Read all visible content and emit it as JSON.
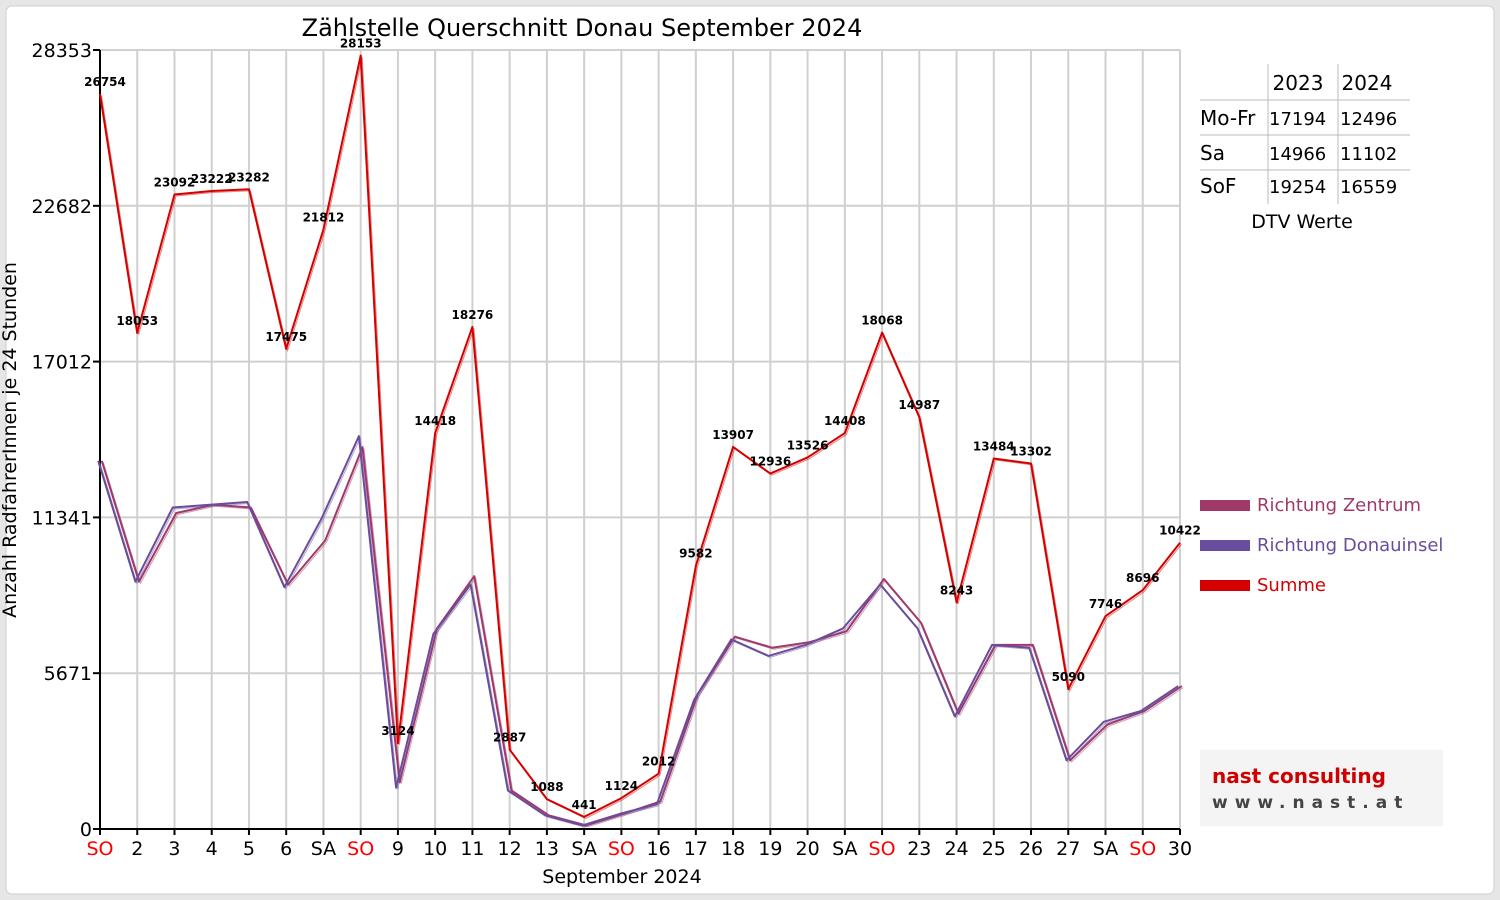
{
  "chart_data": {
    "type": "line",
    "title": "Zählstelle Querschnitt Donau September 2024",
    "xlabel": "September 2024",
    "ylabel": "Anzahl RadfahrerInnen je 24 Stunden",
    "ylim": [
      0,
      28353
    ],
    "yticks": [
      0,
      5671,
      11341,
      17012,
      22682,
      28353
    ],
    "grid": true,
    "categories": [
      "SO",
      "2",
      "3",
      "4",
      "5",
      "6",
      "SA",
      "SO",
      "9",
      "10",
      "11",
      "12",
      "13",
      "SA",
      "SO",
      "16",
      "17",
      "18",
      "19",
      "20",
      "SA",
      "SO",
      "23",
      "24",
      "25",
      "26",
      "27",
      "SA",
      "SO",
      "30"
    ],
    "highlight_categories": [
      "SO"
    ],
    "series": [
      {
        "name": "Richtung Zentrum",
        "color": "#a0396a",
        "values": [
          13400,
          9000,
          11500,
          11800,
          11700,
          8900,
          10500,
          13900,
          1700,
          7300,
          9200,
          1400,
          500,
          130,
          550,
          1000,
          4900,
          7000,
          6600,
          6800,
          7200,
          9100,
          7500,
          4200,
          6700,
          6700,
          2500,
          3800,
          4300,
          5200
        ]
      },
      {
        "name": "Richtung Donauinsel",
        "color": "#6a4c9c",
        "values": [
          13400,
          9000,
          11700,
          11800,
          11900,
          8800,
          11300,
          14300,
          1500,
          7100,
          8900,
          1400,
          500,
          130,
          550,
          900,
          4700,
          6900,
          6300,
          6700,
          7300,
          8900,
          7300,
          4100,
          6700,
          6600,
          2500,
          3900,
          4300,
          5200
        ]
      },
      {
        "name": "Summe",
        "color": "#d40000",
        "values": [
          26754,
          18053,
          23092,
          23222,
          23282,
          17475,
          21812,
          28153,
          3124,
          14418,
          18276,
          2887,
          1088,
          441,
          1124,
          2012,
          9582,
          13907,
          12936,
          13526,
          14408,
          18068,
          14987,
          8243,
          13484,
          13302,
          5090,
          7746,
          8696,
          10422
        ],
        "labels": [
          "26754",
          "18053",
          "23092",
          "23222",
          "23282",
          "17475",
          "21812",
          "28153",
          "3124",
          "14418",
          "18276",
          "2887",
          "1088",
          "441",
          "1124",
          "2012",
          "9582",
          "13907",
          "12936",
          "13526",
          "14408",
          "18068",
          "14987",
          "8243",
          "13484",
          "13302",
          "5090",
          "7746",
          "8696",
          "10422"
        ]
      }
    ],
    "legend": "right",
    "dtv_table": {
      "columns": [
        "2023",
        "2024"
      ],
      "rows": [
        {
          "label": "Mo-Fr",
          "v2023": "17194",
          "v2024": "12496"
        },
        {
          "label": "Sa",
          "v2023": "14966",
          "v2024": "11102"
        },
        {
          "label": "SoF",
          "v2023": "19254",
          "v2024": "16559"
        }
      ],
      "caption": "DTV Werte"
    },
    "logo": {
      "line1": "nast consulting",
      "line2": "www.nast.at"
    }
  },
  "colors": {
    "sunday": "#ff0000",
    "gridline": "#d0d0d0",
    "logo_accent": "#d00000",
    "logo_dark": "#444444"
  }
}
